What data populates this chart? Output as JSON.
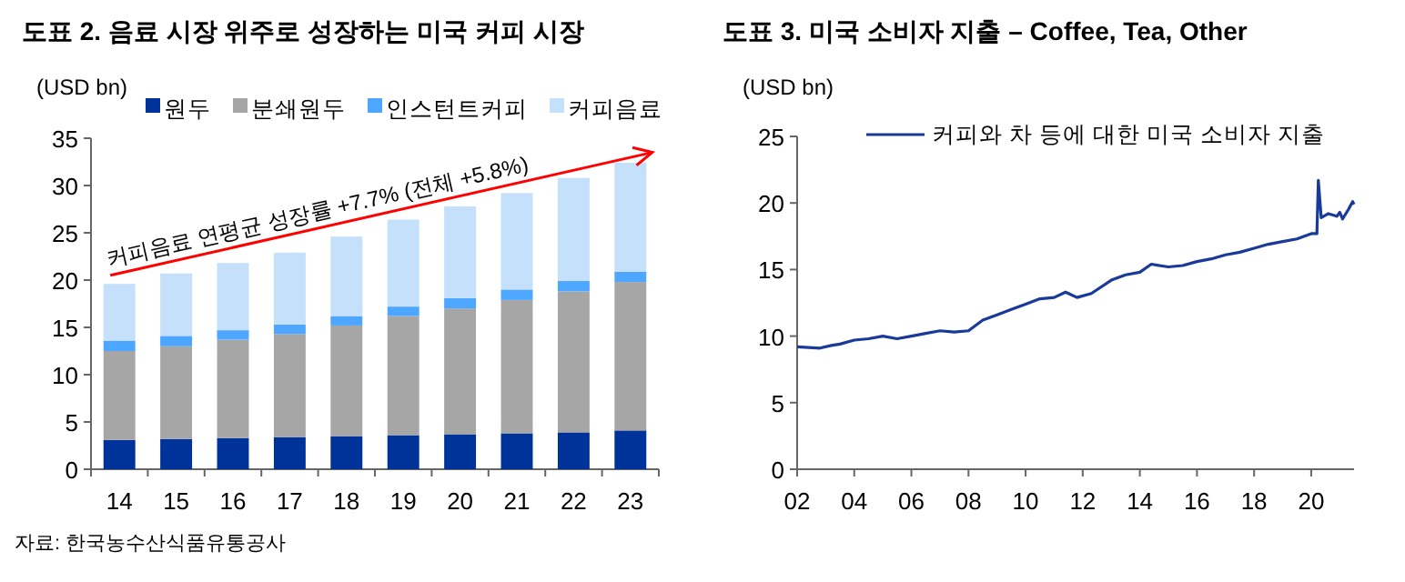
{
  "chart_data": [
    {
      "type": "bar",
      "title": "도표 2.   음료 시장 위주로 성장하는 미국 커피 시장",
      "ylabel": "(USD bn)",
      "categories": [
        "14",
        "15",
        "16",
        "17",
        "18",
        "19",
        "20",
        "21",
        "22",
        "23"
      ],
      "stacked": true,
      "ylim": [
        0,
        35
      ],
      "yticks": [
        0,
        5,
        10,
        15,
        20,
        25,
        30,
        35
      ],
      "legend": "top",
      "series": [
        {
          "name": "원두",
          "color": "#003399",
          "values": [
            3.1,
            3.2,
            3.3,
            3.4,
            3.5,
            3.6,
            3.7,
            3.8,
            3.9,
            4.1
          ]
        },
        {
          "name": "분쇄원두",
          "color": "#a6a6a6",
          "values": [
            9.4,
            9.8,
            10.4,
            10.9,
            11.7,
            12.6,
            13.3,
            14.1,
            14.9,
            15.7
          ]
        },
        {
          "name": "인스턴트커피",
          "color": "#4da6ff",
          "values": [
            1.1,
            1.1,
            1.0,
            1.0,
            1.0,
            1.0,
            1.1,
            1.1,
            1.1,
            1.1
          ]
        },
        {
          "name": "커피음료",
          "color": "#c5e0fa",
          "values": [
            6.0,
            6.6,
            7.1,
            7.6,
            8.4,
            9.2,
            9.7,
            10.2,
            10.9,
            11.5
          ]
        }
      ],
      "annotations": [
        "커피음료 연평균 성장률 +7.7% (전체 +5.8%)",
        "자료: 한국농수산식품유통공사"
      ]
    },
    {
      "type": "line",
      "title": "도표 3.     미국 소비자 지출 – Coffee, Tea, Other",
      "ylabel": "(USD bn)",
      "xlim": [
        2002,
        2021.5
      ],
      "xticks": [
        {
          "value": 2002,
          "label": "02"
        },
        {
          "value": 2004,
          "label": "04"
        },
        {
          "value": 2006,
          "label": "06"
        },
        {
          "value": 2008,
          "label": "08"
        },
        {
          "value": 2010,
          "label": "10"
        },
        {
          "value": 2012,
          "label": "12"
        },
        {
          "value": 2014,
          "label": "14"
        },
        {
          "value": 2016,
          "label": "16"
        },
        {
          "value": 2018,
          "label": "18"
        },
        {
          "value": 2020,
          "label": "20"
        }
      ],
      "ylim": [
        0,
        25
      ],
      "yticks": [
        0,
        5,
        10,
        15,
        20,
        25
      ],
      "legend": "top",
      "x": [
        2002,
        2002.8,
        2003.2,
        2003.5,
        2004,
        2004.5,
        2005,
        2005.5,
        2006,
        2006.5,
        2007,
        2007.5,
        2008,
        2008.5,
        2009,
        2009.5,
        2010,
        2010.5,
        2011,
        2011.4,
        2011.8,
        2012.3,
        2013,
        2013.5,
        2014,
        2014.4,
        2015,
        2015.5,
        2016,
        2016.5,
        2017,
        2017.5,
        2018,
        2018.5,
        2019,
        2019.5,
        2020,
        2020.2,
        2020.25,
        2020.35,
        2020.6,
        2020.9,
        2021.0,
        2021.1,
        2021.3,
        2021.45,
        2021.5
      ],
      "series": [
        {
          "name": "커피와 차 등에 대한 미국 소비자 지출",
          "color": "#1a3a9a",
          "values": [
            9.2,
            9.1,
            9.3,
            9.4,
            9.7,
            9.8,
            10.0,
            9.8,
            10.0,
            10.2,
            10.4,
            10.3,
            10.4,
            11.2,
            11.6,
            12.0,
            12.4,
            12.8,
            12.9,
            13.3,
            12.9,
            13.2,
            14.2,
            14.6,
            14.8,
            15.4,
            15.2,
            15.3,
            15.6,
            15.8,
            16.1,
            16.3,
            16.6,
            16.9,
            17.1,
            17.3,
            17.7,
            17.7,
            21.7,
            18.9,
            19.2,
            19.0,
            19.3,
            18.8,
            19.5,
            20.1,
            19.9
          ]
        }
      ]
    }
  ]
}
